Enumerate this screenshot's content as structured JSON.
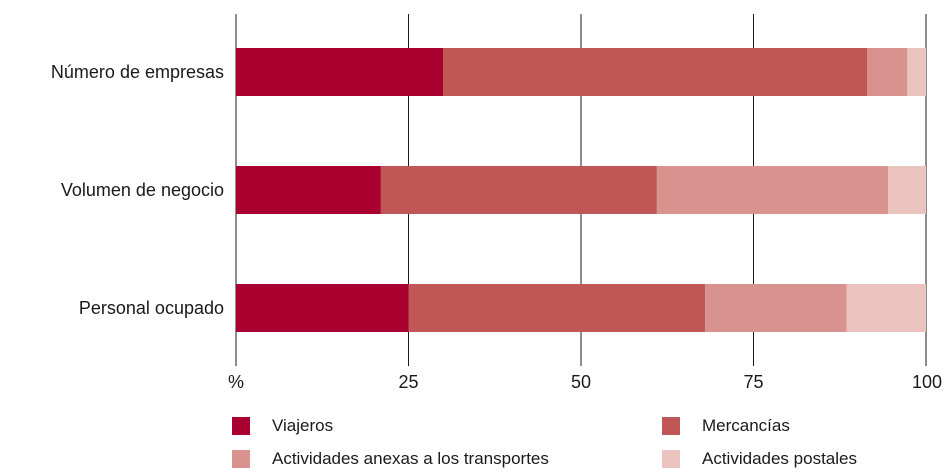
{
  "chart_data": {
    "type": "bar",
    "orientation": "horizontal",
    "stacked": true,
    "categories": [
      "Número de empresas",
      "Volumen de negocio",
      "Personal ocupado"
    ],
    "series": [
      {
        "name": "Viajeros",
        "color": "#a8002f",
        "values": [
          30.0,
          21.0,
          25.0
        ]
      },
      {
        "name": "Mercancías",
        "color": "#c15657",
        "values": [
          61.5,
          40.0,
          43.0
        ]
      },
      {
        "name": "Actividades anexas a los transportes",
        "color": "#d8938f",
        "values": [
          5.8,
          33.5,
          20.5
        ]
      },
      {
        "name": "Actividades postales",
        "color": "#ebc4c0",
        "values": [
          2.7,
          5.5,
          11.5
        ]
      }
    ],
    "xlim": [
      0,
      100
    ],
    "xticks": [
      0,
      25,
      50,
      75,
      100
    ],
    "xtick_labels": [
      "%",
      "25",
      "50",
      "75",
      "100"
    ],
    "grid": "vertical",
    "legend_position": "bottom"
  }
}
